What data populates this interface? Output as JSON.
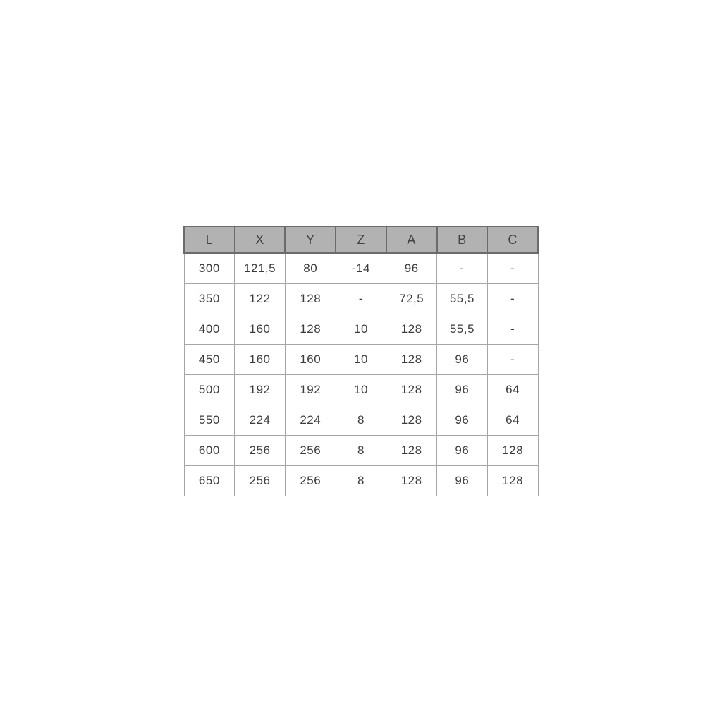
{
  "colors": {
    "page_bg": "#ffffff",
    "header_bg": "#b2b2b2",
    "header_border": "#6b6b6b",
    "cell_border": "#a6a6a6",
    "text": "#3c3c3c"
  },
  "chart_data": {
    "type": "table",
    "title": "",
    "columns": [
      "L",
      "X",
      "Y",
      "Z",
      "A",
      "B",
      "C"
    ],
    "rows": [
      [
        "300",
        "121,5",
        "80",
        "-14",
        "96",
        "-",
        "-"
      ],
      [
        "350",
        "122",
        "128",
        "-",
        "72,5",
        "55,5",
        "-"
      ],
      [
        "400",
        "160",
        "128",
        "10",
        "128",
        "55,5",
        "-"
      ],
      [
        "450",
        "160",
        "160",
        "10",
        "128",
        "96",
        "-"
      ],
      [
        "500",
        "192",
        "192",
        "10",
        "128",
        "96",
        "64"
      ],
      [
        "550",
        "224",
        "224",
        "8",
        "128",
        "96",
        "64"
      ],
      [
        "600",
        "256",
        "256",
        "8",
        "128",
        "96",
        "128"
      ],
      [
        "650",
        "256",
        "256",
        "8",
        "128",
        "96",
        "128"
      ]
    ]
  }
}
